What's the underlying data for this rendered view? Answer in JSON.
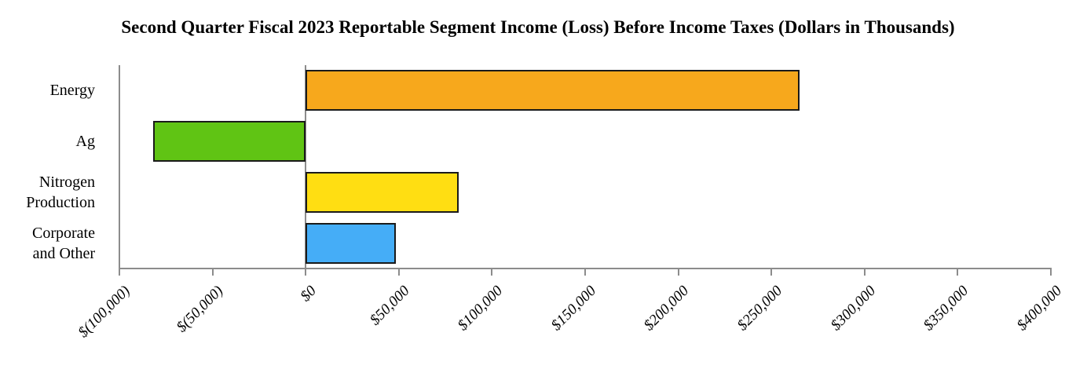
{
  "chart_data": {
    "type": "bar",
    "orientation": "horizontal",
    "title": "Second Quarter Fiscal 2023 Reportable Segment Income (Loss) Before Income Taxes (Dollars in Thousands)",
    "categories": [
      "Energy",
      "Ag",
      "Nitrogen Production",
      "Corporate and Other"
    ],
    "series": [
      {
        "name": "Segment Income (Loss) Before Income Taxes",
        "values": [
          265000,
          -82000,
          82000,
          48500
        ]
      }
    ],
    "bars": [
      {
        "category": "Energy",
        "label_lines": "Energy",
        "value": 265000,
        "color": "#F7A81C"
      },
      {
        "category": "Ag",
        "label_lines": "Ag",
        "value": -82000,
        "color": "#60C414"
      },
      {
        "category": "Nitrogen Production",
        "label_lines": "Nitrogen\nProduction",
        "value": 82000,
        "color": "#FFDE12"
      },
      {
        "category": "Corporate and Other",
        "label_lines": "Corporate\nand Other",
        "value": 48500,
        "color": "#45ADF7"
      }
    ],
    "x_axis": {
      "min": -100000,
      "max": 400000,
      "tick_step": 50000,
      "tick_labels": [
        "$(100,000)",
        "$(50,000)",
        "$0",
        "$50,000",
        "$100,000",
        "$150,000",
        "$200,000",
        "$250,000",
        "$300,000",
        "$350,000",
        "$400,000"
      ],
      "tick_label_rotation_deg": 45
    },
    "colors": {
      "axis": "#8C8C8C",
      "zero_gridline": "#8C8C8C",
      "bar_border": "#1A1A1A",
      "title_text": "#000000",
      "background": "#FFFFFF"
    },
    "grid": "zero-line-only",
    "legend_position": "none"
  }
}
